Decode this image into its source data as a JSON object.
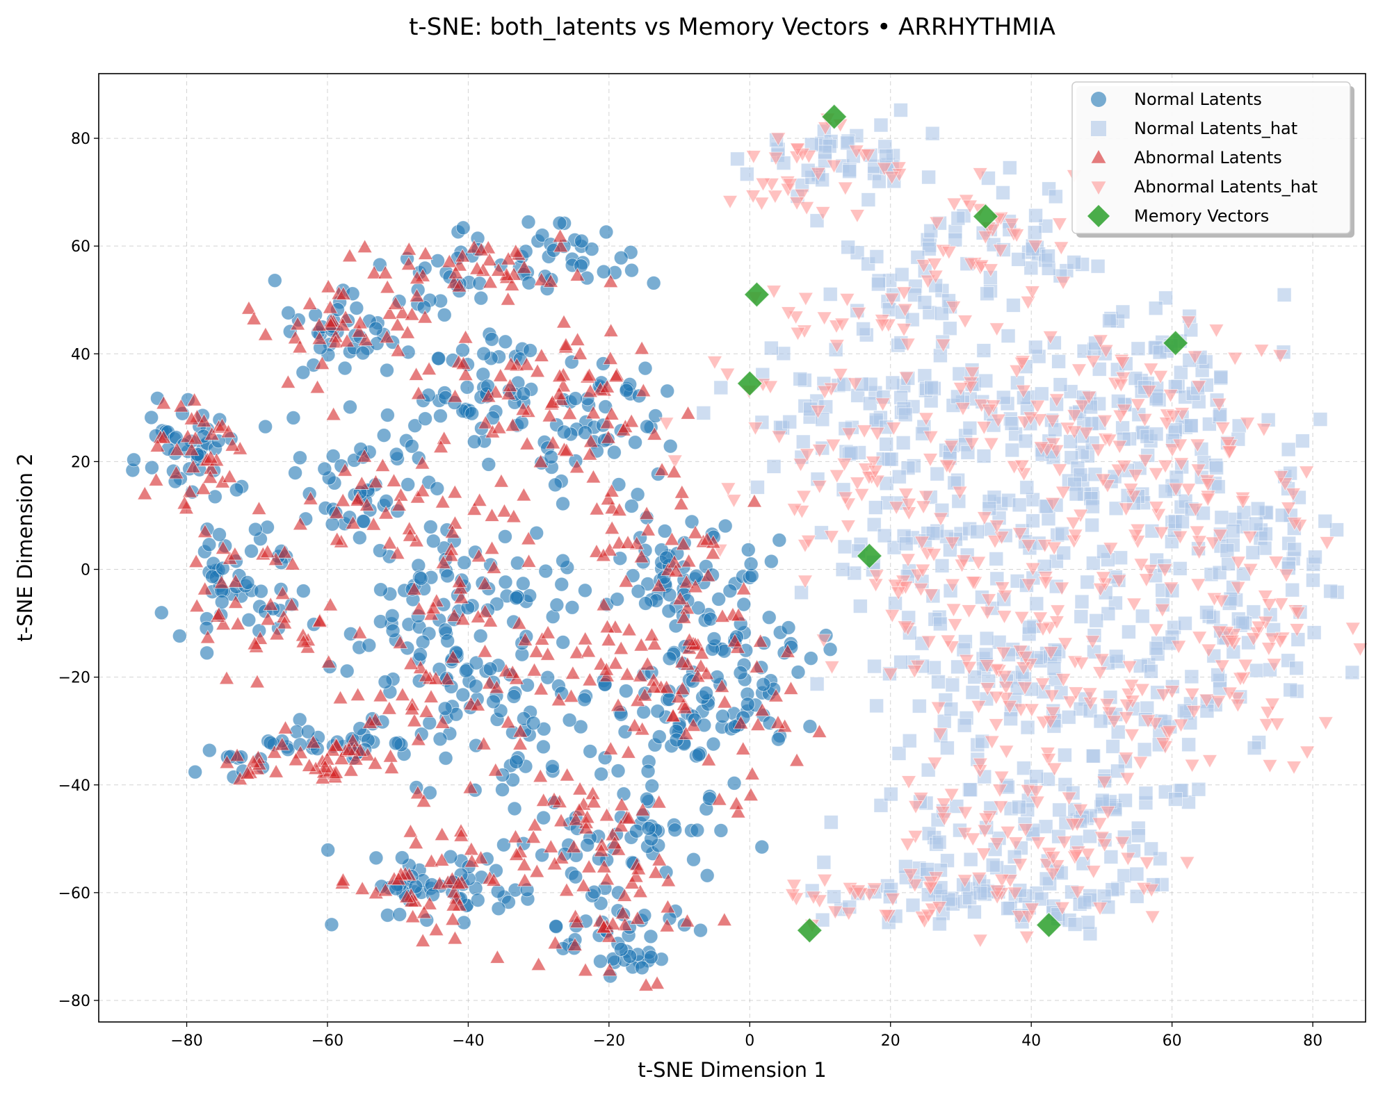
{
  "chart_data": {
    "type": "scatter",
    "title": "t-SNE: both_latents vs Memory Vectors • ARRHYTHMIA",
    "xlabel": "t-SNE Dimension 1",
    "ylabel": "t-SNE Dimension 2",
    "xlim": [
      -92.5,
      87.5
    ],
    "ylim": [
      -84,
      92
    ],
    "xticks": [
      -80,
      -60,
      -40,
      -20,
      0,
      20,
      40,
      60,
      80
    ],
    "yticks": [
      -80,
      -60,
      -40,
      -20,
      0,
      20,
      40,
      60,
      80
    ],
    "xtick_labels": [
      "−80",
      "−60",
      "−40",
      "−20",
      "0",
      "20",
      "40",
      "60",
      "80"
    ],
    "ytick_labels": [
      "−80",
      "−60",
      "−40",
      "−20",
      "0",
      "20",
      "40",
      "60",
      "80"
    ],
    "grid": true,
    "legend_position": "top-right",
    "series": [
      {
        "name": "Normal Latents",
        "marker": "circle",
        "color": "#1f77b4",
        "alpha": 0.6,
        "clusters": [
          {
            "center": [
              -79,
              22
            ],
            "spread": [
              3.5,
              5
            ],
            "count": 45
          },
          {
            "center": [
              -57,
              44
            ],
            "spread": [
              5,
              4
            ],
            "count": 40
          },
          {
            "center": [
              -45,
              52
            ],
            "spread": [
              4,
              3
            ],
            "count": 15
          },
          {
            "center": [
              -30,
              58
            ],
            "spread": [
              8,
              3
            ],
            "count": 45
          },
          {
            "center": [
              -38,
              35
            ],
            "spread": [
              4,
              6
            ],
            "count": 45
          },
          {
            "center": [
              -55,
              17
            ],
            "spread": [
              5,
              6
            ],
            "count": 45
          },
          {
            "center": [
              -20,
              26
            ],
            "spread": [
              6,
              8
            ],
            "count": 55
          },
          {
            "center": [
              -72,
              -4
            ],
            "spread": [
              4,
              6
            ],
            "count": 50
          },
          {
            "center": [
              -40,
              -5
            ],
            "spread": [
              9,
              8
            ],
            "count": 70
          },
          {
            "center": [
              -9,
              0
            ],
            "spread": [
              6,
              5
            ],
            "count": 55
          },
          {
            "center": [
              -42,
              -20
            ],
            "spread": [
              10,
              9
            ],
            "count": 70
          },
          {
            "center": [
              -6,
              -24
            ],
            "spread": [
              8,
              8
            ],
            "count": 110
          },
          {
            "center": [
              -60,
              -33
            ],
            "spread": [
              5,
              2
            ],
            "count": 30
          },
          {
            "center": [
              -72,
              -36
            ],
            "spread": [
              3,
              2
            ],
            "count": 10
          },
          {
            "center": [
              -45,
              -60
            ],
            "spread": [
              6,
              4
            ],
            "count": 55
          },
          {
            "center": [
              -20,
              -67
            ],
            "spread": [
              5,
              4
            ],
            "count": 45
          },
          {
            "center": [
              -15,
              -50
            ],
            "spread": [
              7,
              4
            ],
            "count": 45
          },
          {
            "center": [
              -30,
              -36
            ],
            "spread": [
              8,
              6
            ],
            "count": 30
          }
        ]
      },
      {
        "name": "Normal Latents_hat",
        "marker": "square",
        "color": "#aec7e8",
        "alpha": 0.6,
        "clusters": [
          {
            "center": [
              15,
              75
            ],
            "spread": [
              6,
              4
            ],
            "count": 45
          },
          {
            "center": [
              35,
              60
            ],
            "spread": [
              7,
              6
            ],
            "count": 45
          },
          {
            "center": [
              20,
              50
            ],
            "spread": [
              6,
              5
            ],
            "count": 30
          },
          {
            "center": [
              15,
              28
            ],
            "spread": [
              9,
              7
            ],
            "count": 75
          },
          {
            "center": [
              43,
              30
            ],
            "spread": [
              10,
              8
            ],
            "count": 85
          },
          {
            "center": [
              60,
              35
            ],
            "spread": [
              7,
              8
            ],
            "count": 60
          },
          {
            "center": [
              28,
              5
            ],
            "spread": [
              9,
              7
            ],
            "count": 65
          },
          {
            "center": [
              55,
              8
            ],
            "spread": [
              9,
              9
            ],
            "count": 75
          },
          {
            "center": [
              73,
              0
            ],
            "spread": [
              5,
              10
            ],
            "count": 60
          },
          {
            "center": [
              35,
              -20
            ],
            "spread": [
              9,
              7
            ],
            "count": 65
          },
          {
            "center": [
              58,
              -20
            ],
            "spread": [
              9,
              8
            ],
            "count": 70
          },
          {
            "center": [
              35,
              -45
            ],
            "spread": [
              8,
              6
            ],
            "count": 45
          },
          {
            "center": [
              50,
              -45
            ],
            "spread": [
              7,
              8
            ],
            "count": 55
          },
          {
            "center": [
              25,
              -60
            ],
            "spread": [
              9,
              3
            ],
            "count": 40
          },
          {
            "center": [
              43,
              -62
            ],
            "spread": [
              6,
              3
            ],
            "count": 30
          }
        ]
      },
      {
        "name": "Abnormal Latents",
        "marker": "triangle-up",
        "color": "#d62728",
        "alpha": 0.6,
        "clusters": [
          {
            "center": [
              -78,
              22
            ],
            "spread": [
              4,
              5
            ],
            "count": 35
          },
          {
            "center": [
              -58,
              44
            ],
            "spread": [
              6,
              4
            ],
            "count": 35
          },
          {
            "center": [
              -40,
              56
            ],
            "spread": [
              8,
              3
            ],
            "count": 40
          },
          {
            "center": [
              -30,
              33
            ],
            "spread": [
              8,
              6
            ],
            "count": 35
          },
          {
            "center": [
              -55,
              15
            ],
            "spread": [
              5,
              6
            ],
            "count": 25
          },
          {
            "center": [
              -22,
              22
            ],
            "spread": [
              6,
              10
            ],
            "count": 45
          },
          {
            "center": [
              -70,
              -5
            ],
            "spread": [
              5,
              7
            ],
            "count": 40
          },
          {
            "center": [
              -40,
              5
            ],
            "spread": [
              6,
              8
            ],
            "count": 30
          },
          {
            "center": [
              -42,
              -20
            ],
            "spread": [
              9,
              9
            ],
            "count": 55
          },
          {
            "center": [
              -8,
              -25
            ],
            "spread": [
              7,
              8
            ],
            "count": 60
          },
          {
            "center": [
              -10,
              2
            ],
            "spread": [
              5,
              5
            ],
            "count": 30
          },
          {
            "center": [
              -60,
              -35
            ],
            "spread": [
              5,
              2
            ],
            "count": 30
          },
          {
            "center": [
              -70,
              -37
            ],
            "spread": [
              3,
              2
            ],
            "count": 10
          },
          {
            "center": [
              -30,
              -45
            ],
            "spread": [
              7,
              4
            ],
            "count": 30
          },
          {
            "center": [
              -45,
              -60
            ],
            "spread": [
              6,
              5
            ],
            "count": 40
          },
          {
            "center": [
              -20,
              -60
            ],
            "spread": [
              6,
              8
            ],
            "count": 50
          },
          {
            "center": [
              -20,
              -15
            ],
            "spread": [
              6,
              6
            ],
            "count": 20
          }
        ]
      },
      {
        "name": "Abnormal Latents_hat",
        "marker": "triangle-down",
        "color": "#ff9896",
        "alpha": 0.6,
        "clusters": [
          {
            "center": [
              10,
              73
            ],
            "spread": [
              6,
              4
            ],
            "count": 35
          },
          {
            "center": [
              35,
              60
            ],
            "spread": [
              8,
              6
            ],
            "count": 35
          },
          {
            "center": [
              15,
              45
            ],
            "spread": [
              8,
              6
            ],
            "count": 30
          },
          {
            "center": [
              10,
              20
            ],
            "spread": [
              9,
              9
            ],
            "count": 45
          },
          {
            "center": [
              45,
              30
            ],
            "spread": [
              10,
              8
            ],
            "count": 55
          },
          {
            "center": [
              60,
              25
            ],
            "spread": [
              8,
              10
            ],
            "count": 45
          },
          {
            "center": [
              28,
              0
            ],
            "spread": [
              9,
              7
            ],
            "count": 50
          },
          {
            "center": [
              55,
              5
            ],
            "spread": [
              9,
              8
            ],
            "count": 50
          },
          {
            "center": [
              72,
              -10
            ],
            "spread": [
              6,
              10
            ],
            "count": 45
          },
          {
            "center": [
              35,
              -20
            ],
            "spread": [
              9,
              7
            ],
            "count": 45
          },
          {
            "center": [
              58,
              -25
            ],
            "spread": [
              9,
              8
            ],
            "count": 50
          },
          {
            "center": [
              35,
              -50
            ],
            "spread": [
              8,
              6
            ],
            "count": 35
          },
          {
            "center": [
              48,
              -55
            ],
            "spread": [
              7,
              7
            ],
            "count": 35
          },
          {
            "center": [
              20,
              -60
            ],
            "spread": [
              9,
              3
            ],
            "count": 30
          }
        ]
      },
      {
        "name": "Memory Vectors",
        "marker": "diamond",
        "color": "#2ca02c",
        "alpha": 0.85,
        "points": [
          [
            12,
            84
          ],
          [
            33.5,
            65.5
          ],
          [
            1,
            51
          ],
          [
            60.5,
            42
          ],
          [
            0,
            34.5
          ],
          [
            17,
            2.5
          ],
          [
            8.5,
            -67
          ],
          [
            42.5,
            -66
          ]
        ]
      }
    ]
  }
}
